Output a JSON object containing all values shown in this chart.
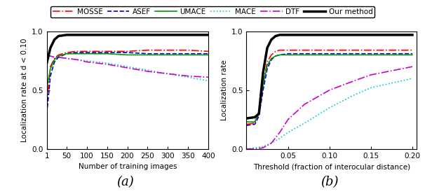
{
  "legend_labels": [
    "MOSSE",
    "ASEF",
    "UMACE",
    "MACE",
    "DTF",
    "Our method"
  ],
  "colors": [
    "#ff0000",
    "#0000cc",
    "#009900",
    "#00cccc",
    "#cc00cc",
    "#000000"
  ],
  "linestyles": [
    "-.",
    "--",
    "-",
    ":",
    "-.",
    "-"
  ],
  "linewidths": [
    1.2,
    1.2,
    1.2,
    1.2,
    1.2,
    2.5
  ],
  "plot_a": {
    "xlabel": "Number of training images",
    "ylabel": "Localization rate at d < 0.10",
    "xticks": [
      1,
      50,
      100,
      150,
      200,
      250,
      300,
      350,
      400
    ],
    "xlim": [
      1,
      400
    ],
    "ylim": [
      0,
      1.0
    ],
    "yticks": [
      0,
      0.5,
      1
    ],
    "label": "(a)",
    "curves": {
      "MOSSE": {
        "x": [
          1,
          10,
          20,
          30,
          50,
          75,
          100,
          150,
          200,
          250,
          300,
          350,
          400
        ],
        "y": [
          0.38,
          0.7,
          0.77,
          0.8,
          0.82,
          0.83,
          0.83,
          0.83,
          0.83,
          0.84,
          0.84,
          0.84,
          0.83
        ]
      },
      "ASEF": {
        "x": [
          1,
          10,
          20,
          30,
          50,
          75,
          100,
          150,
          200,
          250,
          300,
          350,
          400
        ],
        "y": [
          0.3,
          0.62,
          0.74,
          0.78,
          0.81,
          0.82,
          0.82,
          0.82,
          0.82,
          0.81,
          0.81,
          0.81,
          0.81
        ]
      },
      "UMACE": {
        "x": [
          1,
          10,
          20,
          30,
          50,
          75,
          100,
          150,
          200,
          250,
          300,
          350,
          400
        ],
        "y": [
          0.52,
          0.68,
          0.76,
          0.79,
          0.81,
          0.81,
          0.81,
          0.81,
          0.8,
          0.8,
          0.8,
          0.8,
          0.8
        ]
      },
      "MACE": {
        "x": [
          1,
          10,
          20,
          30,
          50,
          75,
          100,
          150,
          200,
          250,
          300,
          350,
          400
        ],
        "y": [
          0.79,
          0.79,
          0.78,
          0.78,
          0.77,
          0.76,
          0.75,
          0.73,
          0.7,
          0.67,
          0.64,
          0.61,
          0.58
        ]
      },
      "DTF": {
        "x": [
          1,
          10,
          20,
          30,
          50,
          75,
          100,
          150,
          200,
          250,
          300,
          350,
          400
        ],
        "y": [
          0.79,
          0.79,
          0.78,
          0.78,
          0.77,
          0.76,
          0.74,
          0.72,
          0.69,
          0.66,
          0.64,
          0.62,
          0.61
        ]
      },
      "Our method": {
        "x": [
          1,
          10,
          20,
          30,
          50,
          75,
          100,
          150,
          200,
          250,
          300,
          350,
          400
        ],
        "y": [
          0.73,
          0.86,
          0.93,
          0.96,
          0.97,
          0.97,
          0.97,
          0.97,
          0.97,
          0.97,
          0.97,
          0.97,
          0.97
        ]
      }
    }
  },
  "plot_b": {
    "xlabel": "Threshold (fraction of interocular distance)",
    "ylabel": "Localization rate",
    "xticks": [
      0.0,
      0.05,
      0.1,
      0.15,
      0.2
    ],
    "xticklabels": [
      "",
      "0.05",
      "0.10",
      "0.15",
      "0.20"
    ],
    "xlim": [
      0.0,
      0.205
    ],
    "ylim": [
      0,
      1.0
    ],
    "yticks": [
      0,
      0.5,
      1
    ],
    "label": "(b)",
    "curves": {
      "MOSSE": {
        "x": [
          0.0,
          0.01,
          0.015,
          0.02,
          0.025,
          0.03,
          0.035,
          0.04,
          0.05,
          0.07,
          0.1,
          0.15,
          0.2
        ],
        "y": [
          0.21,
          0.22,
          0.3,
          0.55,
          0.74,
          0.8,
          0.83,
          0.84,
          0.84,
          0.84,
          0.84,
          0.84,
          0.84
        ]
      },
      "ASEF": {
        "x": [
          0.0,
          0.01,
          0.015,
          0.02,
          0.025,
          0.03,
          0.035,
          0.04,
          0.05,
          0.07,
          0.1,
          0.15,
          0.2
        ],
        "y": [
          0.2,
          0.21,
          0.28,
          0.5,
          0.68,
          0.76,
          0.79,
          0.8,
          0.81,
          0.81,
          0.81,
          0.81,
          0.81
        ]
      },
      "UMACE": {
        "x": [
          0.0,
          0.01,
          0.015,
          0.02,
          0.025,
          0.03,
          0.035,
          0.04,
          0.05,
          0.07,
          0.1,
          0.15,
          0.2
        ],
        "y": [
          0.23,
          0.23,
          0.32,
          0.55,
          0.71,
          0.77,
          0.79,
          0.8,
          0.8,
          0.8,
          0.8,
          0.8,
          0.8
        ]
      },
      "MACE": {
        "x": [
          0.0,
          0.01,
          0.02,
          0.03,
          0.04,
          0.05,
          0.07,
          0.1,
          0.13,
          0.15,
          0.2
        ],
        "y": [
          0.0,
          0.01,
          0.02,
          0.05,
          0.09,
          0.14,
          0.22,
          0.35,
          0.46,
          0.52,
          0.6
        ]
      },
      "DTF": {
        "x": [
          0.0,
          0.01,
          0.02,
          0.03,
          0.04,
          0.05,
          0.07,
          0.1,
          0.13,
          0.15,
          0.2
        ],
        "y": [
          0.0,
          0.0,
          0.01,
          0.05,
          0.14,
          0.25,
          0.38,
          0.5,
          0.58,
          0.63,
          0.7
        ]
      },
      "Our method": {
        "x": [
          0.0,
          0.01,
          0.015,
          0.02,
          0.025,
          0.03,
          0.035,
          0.04,
          0.045,
          0.05,
          0.07,
          0.1,
          0.15,
          0.2
        ],
        "y": [
          0.26,
          0.27,
          0.3,
          0.65,
          0.86,
          0.93,
          0.96,
          0.97,
          0.97,
          0.97,
          0.97,
          0.97,
          0.97,
          0.97
        ]
      }
    }
  },
  "background_color": "#ffffff",
  "label_fontsize": 7.5,
  "tick_fontsize": 7.5,
  "legend_fontsize": 7.5,
  "sublabel_fontsize": 13
}
